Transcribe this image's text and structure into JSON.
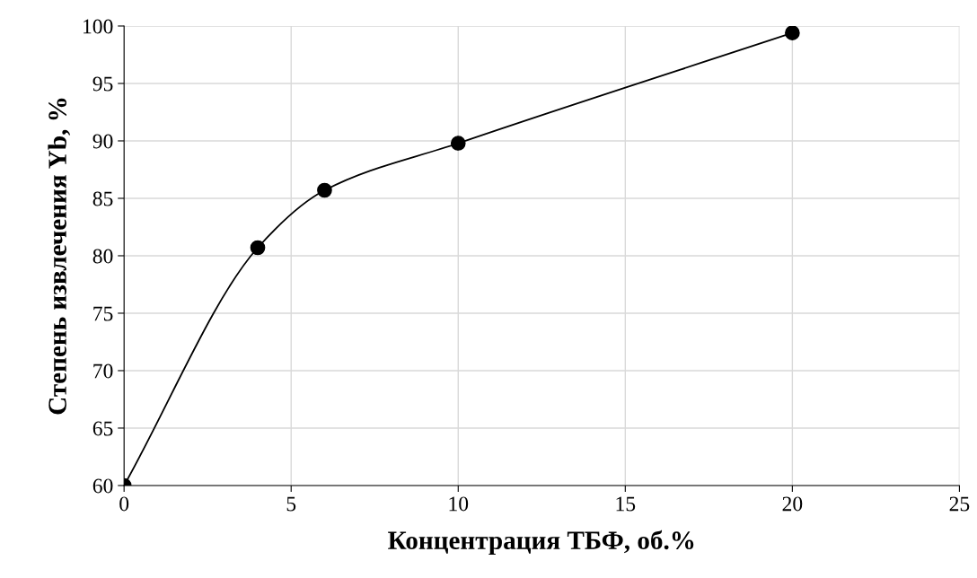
{
  "chart_data": {
    "type": "line",
    "xlabel": "Концентрация ТБФ, об.%",
    "ylabel": "Степень извлечения Yb, %",
    "x": [
      0,
      4,
      6,
      10,
      20
    ],
    "series": [
      {
        "color": "#000000",
        "values": [
          60,
          80.7,
          85.7,
          89.8,
          99.4
        ]
      }
    ],
    "xlim": [
      0,
      25
    ],
    "xticks": [
      0,
      5,
      10,
      15,
      20,
      25
    ],
    "ylim": [
      60,
      100
    ],
    "yticks": [
      60,
      65,
      70,
      75,
      80,
      85,
      90,
      95,
      100
    ],
    "grid": true,
    "marker": "circle",
    "line_style": "solid"
  }
}
